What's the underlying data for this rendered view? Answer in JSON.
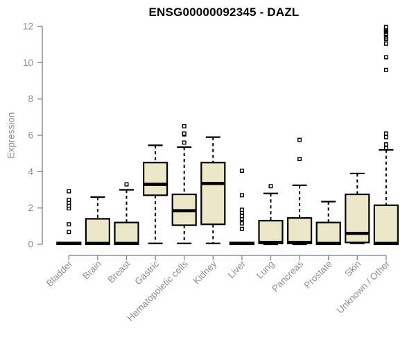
{
  "header": {
    "title": "ENSG00000092345 - DAZL"
  },
  "chart_data": {
    "type": "boxplot",
    "title": "ENSG00000092345 - DAZL",
    "xlabel": "",
    "ylabel": "Expression",
    "ylim": [
      0,
      12
    ],
    "yticks": [
      0,
      2,
      4,
      6,
      8,
      10,
      12
    ],
    "grid": false,
    "legend": "none",
    "categories": [
      "Bladder",
      "Brain",
      "Breast",
      "Gastric",
      "Hematopoietic cells",
      "Kidney",
      "Liver",
      "Lung",
      "Pancreas",
      "Prostate",
      "Skin",
      "Unknown / Other"
    ],
    "series": [
      {
        "name": "Bladder",
        "low": 0,
        "q1": 0,
        "median": 0.05,
        "q3": 0.1,
        "high": 0.1,
        "outliers": [
          0.68,
          1.1,
          1.98,
          2.13,
          2.29,
          2.45,
          2.92
        ]
      },
      {
        "name": "Brain",
        "low": 0,
        "q1": 0,
        "median": 0.05,
        "q3": 1.4,
        "high": 2.6,
        "outliers": []
      },
      {
        "name": "Breast",
        "low": 0,
        "q1": 0,
        "median": 0.05,
        "q3": 1.2,
        "high": 3.0,
        "outliers": [
          3.3
        ]
      },
      {
        "name": "Gastric",
        "low": 0.05,
        "q1": 2.7,
        "median": 3.3,
        "q3": 4.5,
        "high": 5.45,
        "outliers": []
      },
      {
        "name": "Hematopoietic cells",
        "low": 0.05,
        "q1": 1.05,
        "median": 1.85,
        "q3": 2.75,
        "high": 5.35,
        "outliers": [
          5.6,
          6.05,
          6.1,
          6.5
        ]
      },
      {
        "name": "Kidney",
        "low": 0.05,
        "q1": 1.1,
        "median": 3.35,
        "q3": 4.5,
        "high": 5.9,
        "outliers": []
      },
      {
        "name": "Liver",
        "low": 0,
        "q1": 0,
        "median": 0.05,
        "q3": 0.1,
        "high": 0.1,
        "outliers": [
          0.85,
          1.15,
          1.4,
          1.55,
          1.75,
          1.9,
          2.7,
          4.05
        ]
      },
      {
        "name": "Lung",
        "low": 0,
        "q1": 0.05,
        "median": 0.1,
        "q3": 1.3,
        "high": 2.8,
        "outliers": [
          3.2
        ]
      },
      {
        "name": "Pancreas",
        "low": 0,
        "q1": 0.05,
        "median": 0.1,
        "q3": 1.45,
        "high": 3.25,
        "outliers": [
          4.7,
          5.75
        ]
      },
      {
        "name": "Prostate",
        "low": 0,
        "q1": 0,
        "median": 0.05,
        "q3": 1.2,
        "high": 2.35,
        "outliers": []
      },
      {
        "name": "Skin",
        "low": 0.05,
        "q1": 0.1,
        "median": 0.6,
        "q3": 2.75,
        "high": 3.9,
        "outliers": []
      },
      {
        "name": "Unknown / Other",
        "low": 0,
        "q1": 0,
        "median": 0.05,
        "q3": 2.15,
        "high": 5.2,
        "outliers": [
          5.3,
          5.5,
          5.9,
          6.1,
          9.6,
          10.3,
          11.05,
          11.3,
          11.4,
          11.5,
          11.55,
          11.6,
          11.7,
          11.75,
          11.8,
          11.85,
          11.9,
          11.97
        ]
      }
    ],
    "colors": {
      "box_fill": "#EDE7C9",
      "box_border": "#000000",
      "median": "#000000",
      "whisker": "#000000",
      "axis": "#7F7F7F",
      "tick_label": "#8E8E8E",
      "title": "#000000",
      "background": "#FFFFFF"
    }
  }
}
